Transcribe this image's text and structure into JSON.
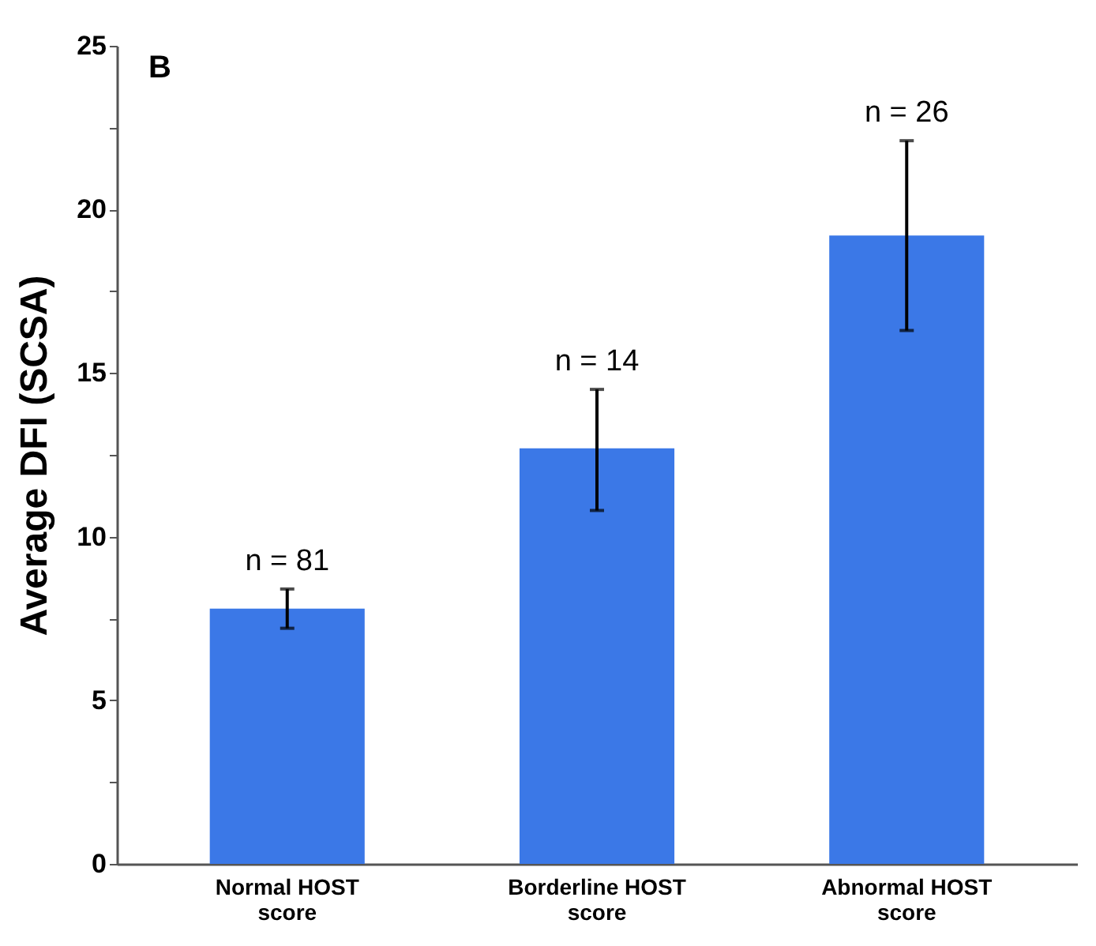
{
  "chart_data": {
    "type": "bar",
    "ylabel": "Average DFI (SCSA)",
    "categories": [
      "Normal HOST score",
      "Borderline HOST score",
      "Abnormal HOST score"
    ],
    "values": [
      7.8,
      12.7,
      19.2
    ],
    "color": "#3b78e7",
    "errors": [
      [
        7.2,
        8.4
      ],
      [
        10.8,
        14.5
      ],
      [
        16.3,
        22.1
      ]
    ],
    "ylim": [
      0,
      25
    ],
    "yticks": [
      0,
      {
        "value": 2.5,
        "label": null
      },
      5,
      {
        "value": 7.5,
        "label": null
      },
      10,
      {
        "value": 12.5,
        "label": null
      },
      15,
      {
        "value": 17.5,
        "label": null
      },
      20,
      {
        "value": 22.5,
        "label": null
      },
      25
    ],
    "annotations": [
      "B",
      "n = 81",
      "n = 14",
      "n = 26"
    ],
    "grid": false
  }
}
